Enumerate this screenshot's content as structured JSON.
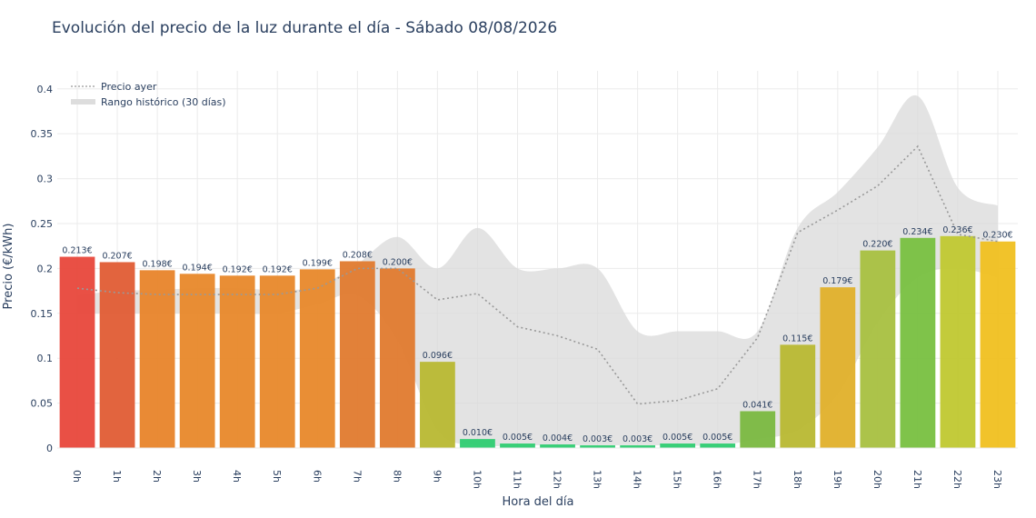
{
  "chart_data": {
    "type": "bar",
    "title": "Evolución del precio de la luz durante el día - Sábado 08/08/2026",
    "xlabel": "Hora del día",
    "ylabel": "Precio (€/kWh)",
    "ylim": [
      0,
      0.42
    ],
    "yticks": [
      0,
      0.05,
      0.1,
      0.15,
      0.2,
      0.25,
      0.3,
      0.35,
      0.4
    ],
    "ytick_labels": [
      "0",
      "0.05",
      "0.1",
      "0.15",
      "0.2",
      "0.25",
      "0.3",
      "0.35",
      "0.4"
    ],
    "grid": true,
    "categories": [
      "0h",
      "1h",
      "2h",
      "3h",
      "4h",
      "5h",
      "6h",
      "7h",
      "8h",
      "9h",
      "10h",
      "11h",
      "12h",
      "13h",
      "14h",
      "15h",
      "16h",
      "17h",
      "18h",
      "19h",
      "20h",
      "21h",
      "22h",
      "23h"
    ],
    "values": [
      0.213,
      0.207,
      0.198,
      0.194,
      0.192,
      0.192,
      0.199,
      0.208,
      0.2,
      0.096,
      0.01,
      0.005,
      0.004,
      0.003,
      0.003,
      0.005,
      0.005,
      0.041,
      0.115,
      0.179,
      0.22,
      0.234,
      0.236,
      0.23
    ],
    "data_labels": [
      "0.213€",
      "0.207€",
      "0.198€",
      "0.194€",
      "0.192€",
      "0.192€",
      "0.199€",
      "0.208€",
      "0.200€",
      "0.096€",
      "0.010€",
      "0.005€",
      "0.004€",
      "0.003€",
      "0.003€",
      "0.005€",
      "0.005€",
      "0.041€",
      "0.115€",
      "0.179€",
      "0.220€",
      "0.234€",
      "0.236€",
      "0.230€"
    ],
    "bar_colors": [
      "#e8473b",
      "#e05c34",
      "#e8842a",
      "#e8882a",
      "#e8882a",
      "#e8882a",
      "#e8882a",
      "#e07a2e",
      "#e07a2e",
      "#b8b832",
      "#2ecc71",
      "#2ecc71",
      "#2ecc71",
      "#2ecc71",
      "#2ecc71",
      "#2ecc71",
      "#2ecc71",
      "#7ab840",
      "#b8b832",
      "#e0b02a",
      "#a8c040",
      "#78c040",
      "#c0c830",
      "#f0c020"
    ],
    "yesterday": {
      "name": "Precio ayer",
      "values": [
        0.178,
        0.173,
        0.171,
        0.171,
        0.171,
        0.171,
        0.178,
        0.2,
        0.2,
        0.165,
        0.172,
        0.135,
        0.125,
        0.11,
        0.049,
        0.053,
        0.066,
        0.123,
        0.24,
        0.265,
        0.292,
        0.336,
        0.238,
        0.23
      ]
    },
    "range": {
      "name": "Rango histórico (30 días)",
      "upper": [
        0.17,
        0.175,
        0.176,
        0.178,
        0.178,
        0.176,
        0.18,
        0.205,
        0.235,
        0.2,
        0.245,
        0.2,
        0.2,
        0.2,
        0.13,
        0.13,
        0.13,
        0.13,
        0.245,
        0.285,
        0.335,
        0.392,
        0.29,
        0.27
      ],
      "lower": [
        0.15,
        0.15,
        0.15,
        0.15,
        0.15,
        0.15,
        0.16,
        0.17,
        0.12,
        0.02,
        0.003,
        0.003,
        0.003,
        0.003,
        0.003,
        0.003,
        0.003,
        0.01,
        0.02,
        0.06,
        0.14,
        0.19,
        0.2,
        0.19
      ]
    },
    "legend_placement": "top-left"
  }
}
